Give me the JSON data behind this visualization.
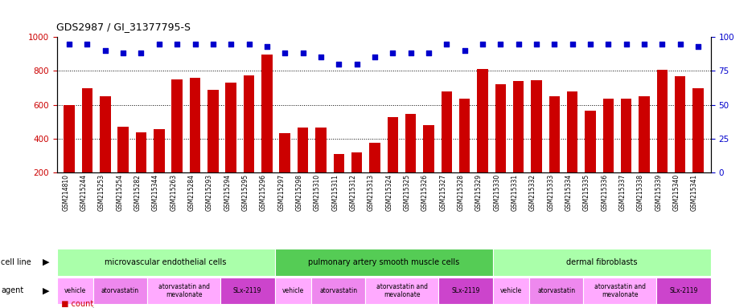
{
  "title": "GDS2987 / GI_31377795-S",
  "gsm_labels": [
    "GSM214810",
    "GSM215244",
    "GSM215253",
    "GSM215254",
    "GSM215282",
    "GSM215344",
    "GSM215263",
    "GSM215284",
    "GSM215293",
    "GSM215294",
    "GSM215295",
    "GSM215296",
    "GSM215297",
    "GSM215298",
    "GSM215310",
    "GSM215311",
    "GSM215312",
    "GSM215313",
    "GSM215324",
    "GSM215325",
    "GSM215326",
    "GSM215327",
    "GSM215328",
    "GSM215329",
    "GSM215330",
    "GSM215331",
    "GSM215332",
    "GSM215333",
    "GSM215334",
    "GSM215335",
    "GSM215336",
    "GSM215337",
    "GSM215338",
    "GSM215339",
    "GSM215340",
    "GSM215341"
  ],
  "bar_values": [
    600,
    695,
    648,
    470,
    438,
    455,
    748,
    760,
    690,
    730,
    775,
    895,
    430,
    465,
    465,
    308,
    318,
    375,
    525,
    548,
    478,
    680,
    638,
    810,
    720,
    738,
    745,
    648,
    678,
    563,
    638,
    638,
    648,
    805,
    770,
    695
  ],
  "percentile_values": [
    95,
    95,
    90,
    88,
    88,
    95,
    95,
    95,
    95,
    95,
    95,
    93,
    88,
    88,
    85,
    80,
    80,
    85,
    88,
    88,
    88,
    95,
    90,
    95,
    95,
    95,
    95,
    95,
    95,
    95,
    95,
    95,
    95,
    95,
    95,
    93
  ],
  "bar_color": "#cc0000",
  "percentile_color": "#0000cc",
  "ylim_left": [
    200,
    1000
  ],
  "ylim_right": [
    0,
    100
  ],
  "yticks_left": [
    200,
    400,
    600,
    800,
    1000
  ],
  "yticks_right": [
    0,
    25,
    50,
    75,
    100
  ],
  "grid_lines": [
    400,
    600,
    800
  ],
  "cell_line_groups": [
    {
      "label": "microvascular endothelial cells",
      "start": 0,
      "end": 11,
      "color": "#aaffaa"
    },
    {
      "label": "pulmonary artery smooth muscle cells",
      "start": 12,
      "end": 23,
      "color": "#55cc55"
    },
    {
      "label": "dermal fibroblasts",
      "start": 24,
      "end": 35,
      "color": "#aaffaa"
    }
  ],
  "agent_groups": [
    {
      "label": "vehicle",
      "start": 0,
      "end": 1,
      "color": "#ffaaff"
    },
    {
      "label": "atorvastatin",
      "start": 2,
      "end": 4,
      "color": "#ee88ee"
    },
    {
      "label": "atorvastatin and\nmevalonate",
      "start": 5,
      "end": 8,
      "color": "#ffaaff"
    },
    {
      "label": "SLx-2119",
      "start": 9,
      "end": 11,
      "color": "#cc44cc"
    },
    {
      "label": "vehicle",
      "start": 12,
      "end": 13,
      "color": "#ffaaff"
    },
    {
      "label": "atorvastatin",
      "start": 14,
      "end": 16,
      "color": "#ee88ee"
    },
    {
      "label": "atorvastatin and\nmevalonate",
      "start": 17,
      "end": 20,
      "color": "#ffaaff"
    },
    {
      "label": "SLx-2119",
      "start": 21,
      "end": 23,
      "color": "#cc44cc"
    },
    {
      "label": "vehicle",
      "start": 24,
      "end": 25,
      "color": "#ffaaff"
    },
    {
      "label": "atorvastatin",
      "start": 26,
      "end": 28,
      "color": "#ee88ee"
    },
    {
      "label": "atorvastatin and\nmevalonate",
      "start": 29,
      "end": 32,
      "color": "#ffaaff"
    },
    {
      "label": "SLx-2119",
      "start": 33,
      "end": 35,
      "color": "#cc44cc"
    }
  ]
}
